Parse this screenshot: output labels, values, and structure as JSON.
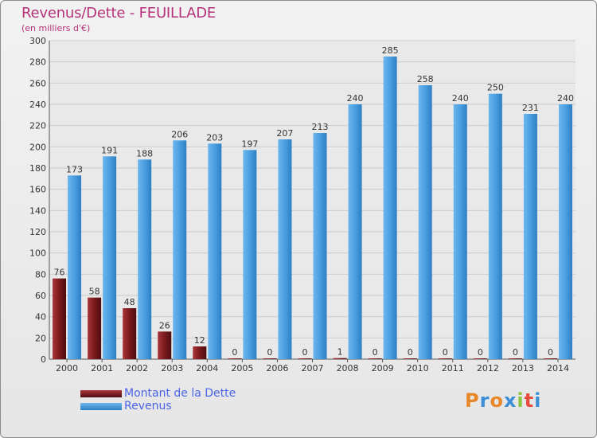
{
  "chart_data": {
    "type": "bar",
    "title": "Revenus/Dette - FEUILLADE",
    "subtitle": "(en milliers d'€)",
    "categories": [
      "2000",
      "2001",
      "2002",
      "2003",
      "2004",
      "2005",
      "2006",
      "2007",
      "2008",
      "2009",
      "2010",
      "2011",
      "2012",
      "2013",
      "2014"
    ],
    "series": [
      {
        "name": "Montant de la Dette",
        "color": "#7a1a1d",
        "values": [
          76,
          58,
          48,
          26,
          12,
          0,
          0,
          0,
          1,
          0,
          0,
          0,
          0,
          0,
          0
        ]
      },
      {
        "name": "Revenus",
        "color": "#4a9fe0",
        "values": [
          173,
          191,
          188,
          206,
          203,
          197,
          207,
          213,
          240,
          285,
          258,
          240,
          250,
          231,
          240
        ]
      }
    ],
    "ylim": [
      0,
      300
    ],
    "yticks": [
      0,
      20,
      40,
      60,
      80,
      100,
      120,
      140,
      160,
      180,
      200,
      220,
      240,
      260,
      280,
      300
    ],
    "grid": true,
    "legend_position": "bottom-left"
  },
  "branding": {
    "logo_letters": [
      "P",
      "r",
      "o",
      "x",
      "i",
      "t",
      "i"
    ],
    "logo_colors": [
      "#e8862a",
      "#3c8fd6",
      "#e8862a",
      "#3c8fd6",
      "#8cc63f",
      "#e84c3d",
      "#3c8fd6"
    ]
  }
}
